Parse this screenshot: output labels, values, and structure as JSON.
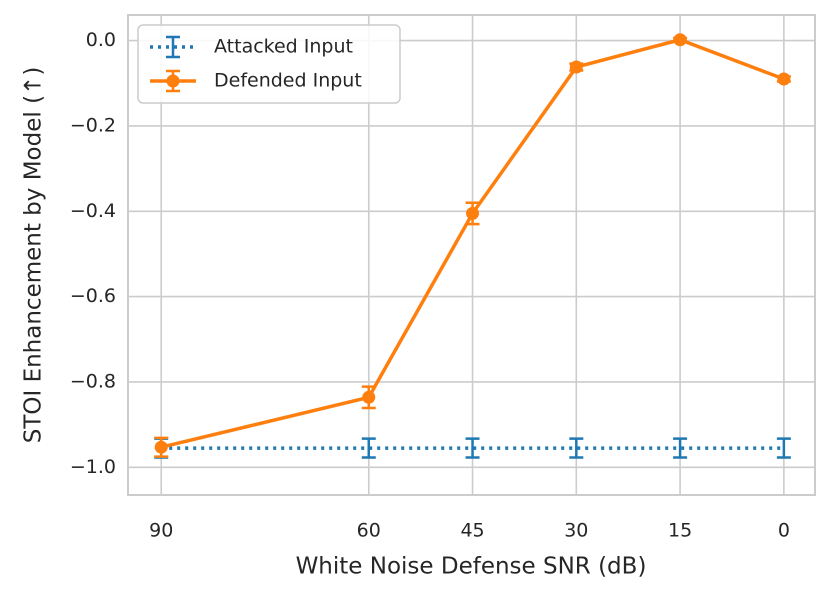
{
  "chart_data": {
    "type": "line",
    "x_label": "White Noise Defense SNR (dB)",
    "y_label": "STOI Enhancement by Model (↑)",
    "x": [
      90,
      60,
      45,
      30,
      15,
      0
    ],
    "xlim": [
      94.8,
      -4.5
    ],
    "xticks": [
      90,
      60,
      45,
      30,
      15,
      0
    ],
    "ylim": [
      -1.065,
      0.06
    ],
    "yticks": [
      {
        "value": -1,
        "label": "−1.0"
      },
      {
        "value": -0.8,
        "label": "−0.8"
      },
      {
        "value": -0.6,
        "label": "−0.6"
      },
      {
        "value": -0.4,
        "label": "−0.4"
      },
      {
        "value": -0.2,
        "label": "−0.2"
      },
      {
        "value": 0,
        "label": "0.0"
      }
    ],
    "grid": true,
    "legend": "upper left",
    "series": [
      {
        "name": "Attacked Input",
        "color": "#1f77b4",
        "linestyle": "dotted",
        "marker": "none",
        "values": [
          -0.955,
          -0.955,
          -0.955,
          -0.955,
          -0.955,
          -0.955
        ],
        "errors": [
          0.022,
          0.022,
          0.022,
          0.022,
          0.022,
          0.022
        ]
      },
      {
        "name": "Defended Input",
        "color": "#ff7f0e",
        "linestyle": "solid",
        "marker": "o",
        "values": [
          -0.953,
          -0.836,
          -0.405,
          -0.062,
          0.002,
          -0.09
        ],
        "errors": [
          0.022,
          0.025,
          0.025,
          0.008,
          0.004,
          0.006
        ]
      }
    ]
  }
}
